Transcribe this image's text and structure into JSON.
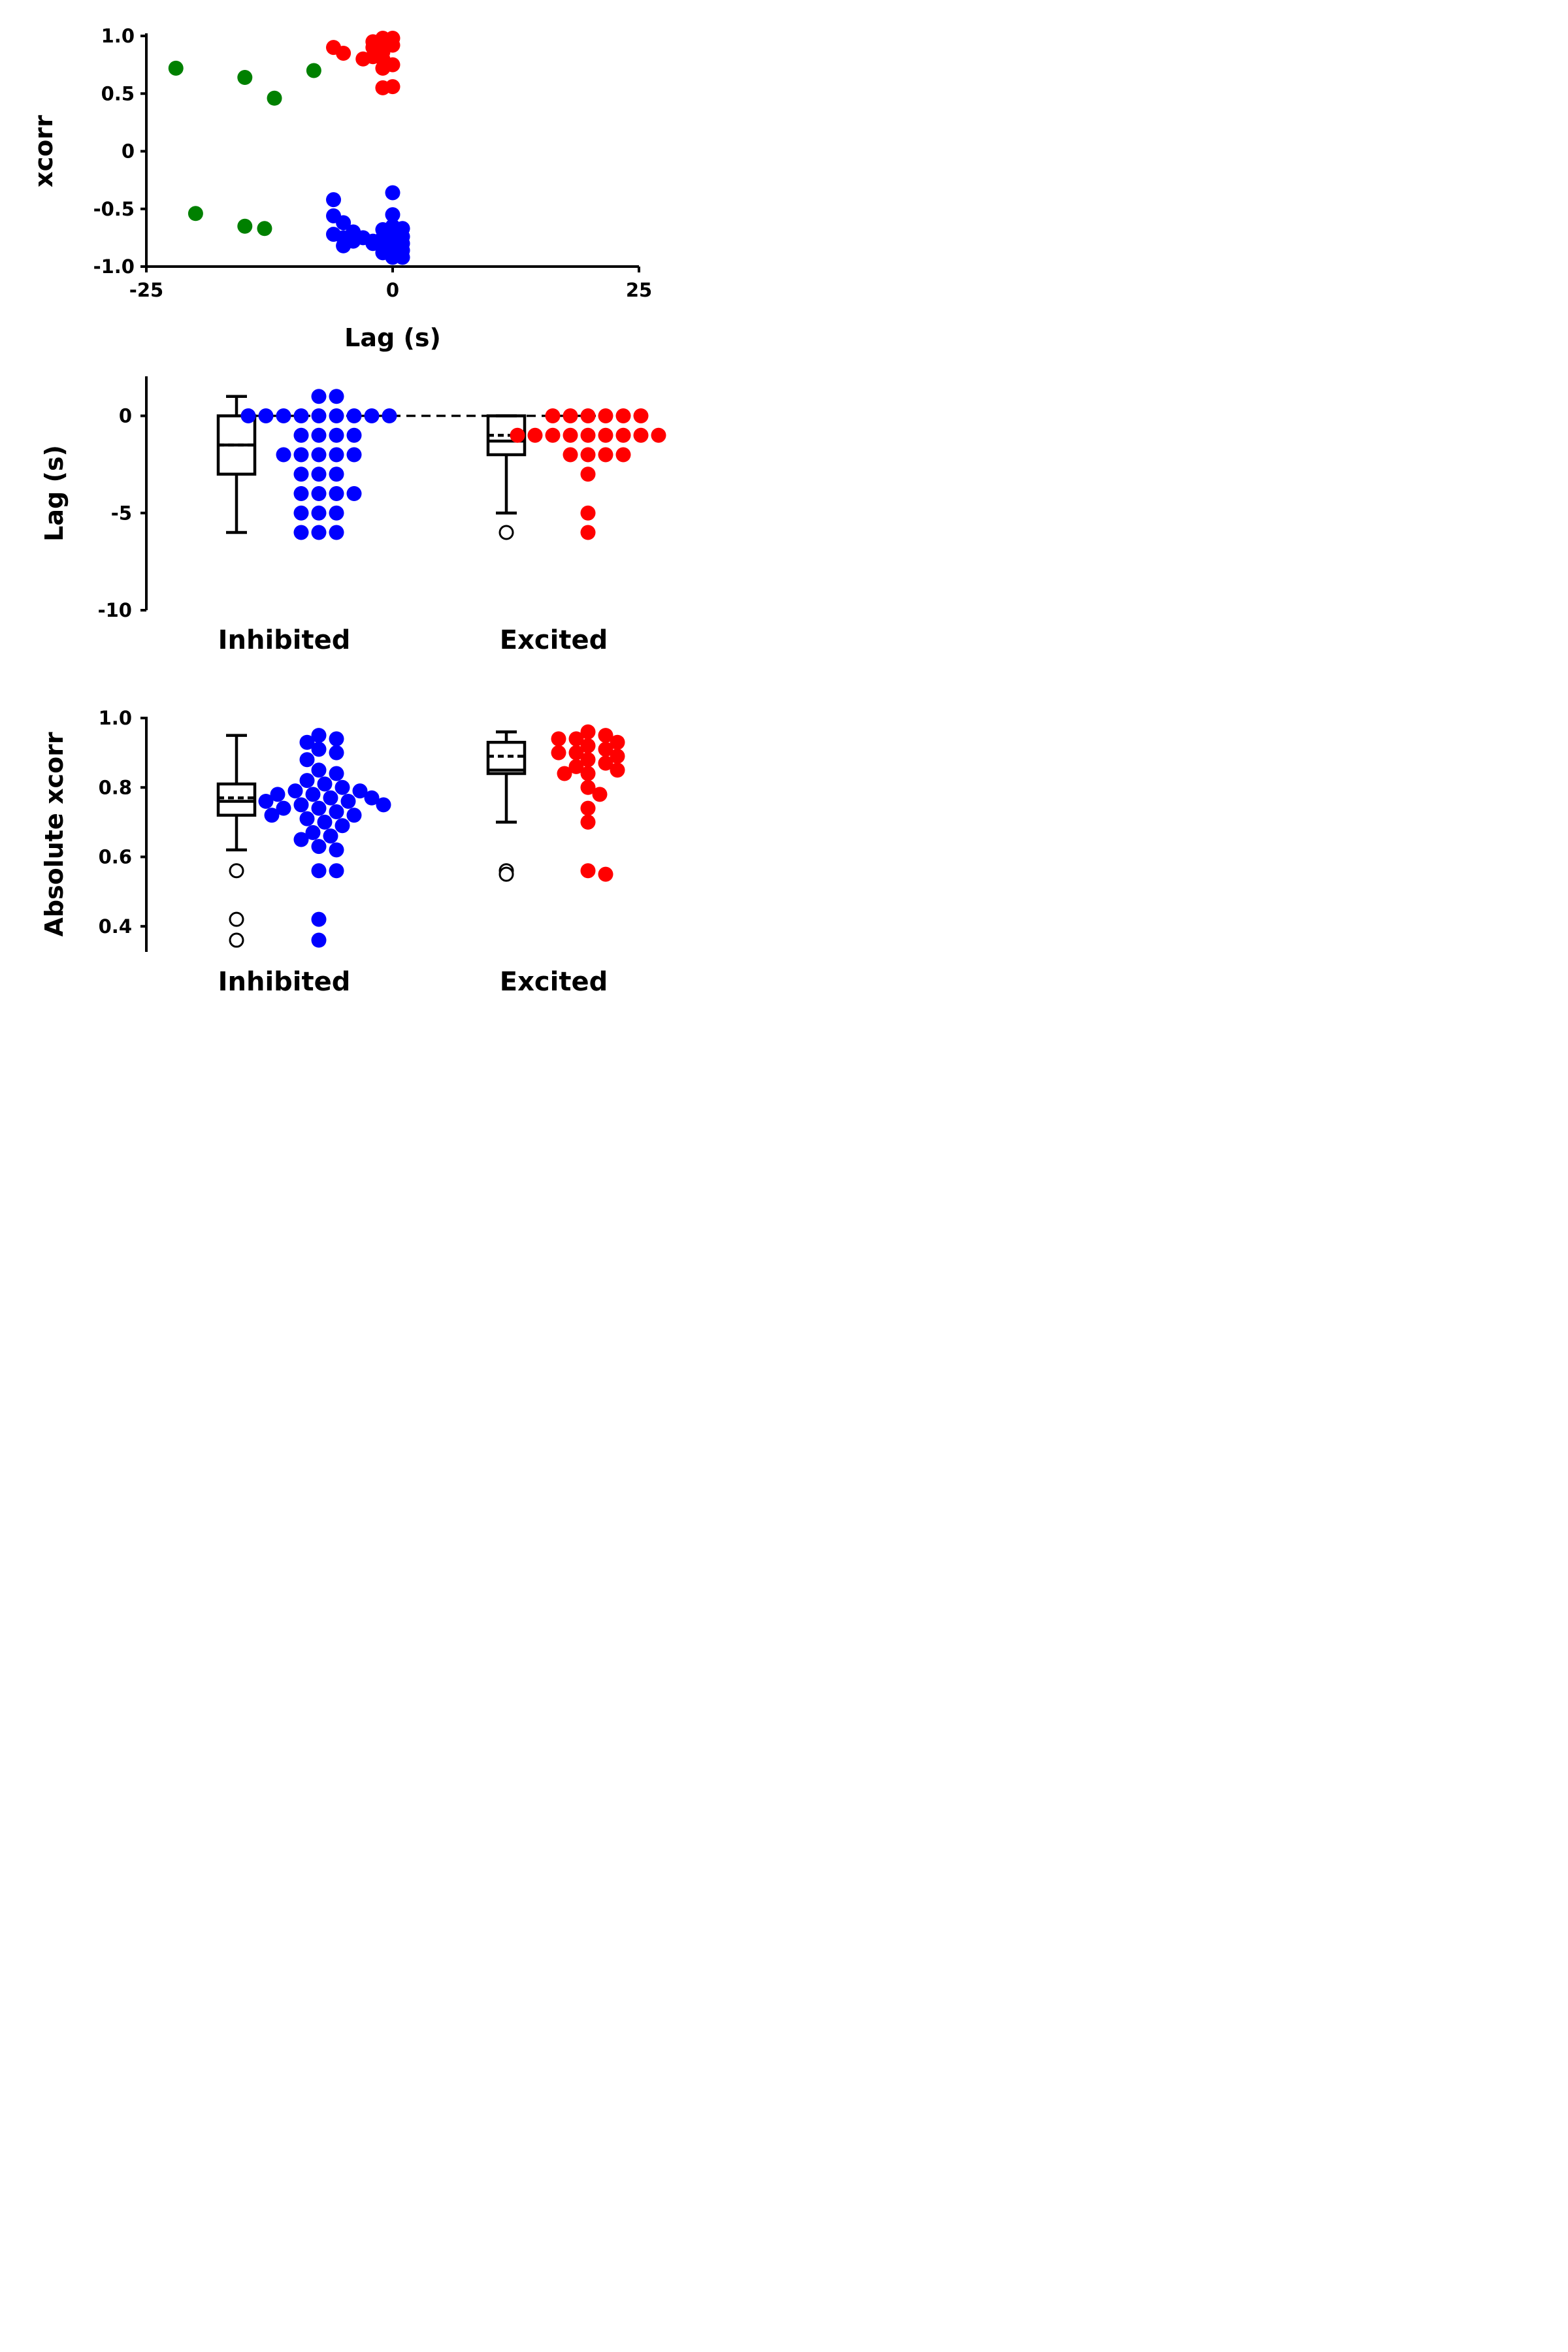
{
  "chart_data": [
    {
      "type": "scatter",
      "xlabel": "Lag (s)",
      "ylabel": "xcorr",
      "xlim": [
        -25,
        25
      ],
      "ylim": [
        -1.0,
        1.0
      ],
      "x_ticks": [
        -25,
        0,
        25
      ],
      "x_tick_labels": [
        "-25",
        "0",
        "25"
      ],
      "y_ticks": [
        1.0,
        0.5,
        0,
        -0.5,
        -1.0
      ],
      "y_tick_labels": [
        "1.0",
        "0.5",
        "0",
        "-0.5",
        "-1.0"
      ],
      "series": [
        {
          "color": "#008000",
          "points": [
            [
              -22,
              0.72
            ],
            [
              -15,
              0.64
            ],
            [
              -12,
              0.46
            ],
            [
              -8,
              0.7
            ],
            [
              -20,
              -0.54
            ],
            [
              -15,
              -0.65
            ],
            [
              -13,
              -0.67
            ]
          ]
        },
        {
          "color": "#ff0000",
          "points": [
            [
              -6,
              0.9
            ],
            [
              -5,
              0.85
            ],
            [
              -3,
              0.8
            ],
            [
              -2,
              0.82
            ],
            [
              -2,
              0.9
            ],
            [
              -2,
              0.95
            ],
            [
              -1,
              0.98
            ],
            [
              -1,
              0.93
            ],
            [
              -1,
              0.86
            ],
            [
              -1,
              0.8
            ],
            [
              -1,
              0.72
            ],
            [
              -1,
              0.55
            ],
            [
              0,
              0.98
            ],
            [
              0,
              0.92
            ],
            [
              0,
              0.75
            ],
            [
              0,
              0.56
            ],
            [
              -1.5,
              0.88
            ],
            [
              -0.5,
              0.96
            ]
          ]
        },
        {
          "color": "#0000ff",
          "points": [
            [
              -6,
              -0.42
            ],
            [
              -6,
              -0.56
            ],
            [
              -6,
              -0.72
            ],
            [
              -5,
              -0.62
            ],
            [
              -5,
              -0.75
            ],
            [
              -5,
              -0.82
            ],
            [
              -4,
              -0.7
            ],
            [
              -4,
              -0.78
            ],
            [
              -3,
              -0.75
            ],
            [
              -2,
              -0.78
            ],
            [
              -2,
              -0.8
            ],
            [
              -1,
              -0.68
            ],
            [
              -1,
              -0.75
            ],
            [
              -1,
              -0.82
            ],
            [
              -1,
              -0.88
            ],
            [
              0,
              -0.36
            ],
            [
              0,
              -0.55
            ],
            [
              0,
              -0.65
            ],
            [
              0,
              -0.72
            ],
            [
              0,
              -0.8
            ],
            [
              0,
              -0.86
            ],
            [
              0,
              -0.92
            ],
            [
              1,
              -0.67
            ],
            [
              1,
              -0.74
            ],
            [
              1,
              -0.8
            ],
            [
              1,
              -0.86
            ],
            [
              1,
              -0.92
            ]
          ]
        }
      ]
    },
    {
      "type": "box",
      "ylabel": "Lag (s)",
      "ylim": [
        -10,
        2
      ],
      "y_ticks": [
        0,
        -5,
        -10
      ],
      "y_tick_labels": [
        "0",
        "-5",
        "-10"
      ],
      "reference_line": 0,
      "groups": [
        {
          "name": "Inhibited",
          "color": "#0000ff",
          "box": {
            "q1": -3,
            "median": -1.5,
            "mean": -1.5,
            "q3": 0,
            "whisker_low": -6,
            "whisker_high": 1
          },
          "outliers": [],
          "points": [
            1,
            1,
            0,
            0,
            0,
            0,
            0,
            0,
            0,
            0,
            0,
            -1,
            -1,
            -1,
            -1,
            -2,
            -2,
            -2,
            -2,
            -2,
            -3,
            -3,
            -3,
            -4,
            -4,
            -4,
            -4,
            -5,
            -5,
            -5,
            -6,
            -6,
            -6
          ]
        },
        {
          "name": "Excited",
          "color": "#ff0000",
          "box": {
            "q1": -2,
            "median": -1.3,
            "mean": -1,
            "q3": 0,
            "whisker_low": -5,
            "whisker_high": 0
          },
          "outliers": [
            -6
          ],
          "points": [
            0,
            0,
            0,
            0,
            0,
            0,
            -1,
            -1,
            -1,
            -1,
            -1,
            -1,
            -1,
            -1,
            -1,
            -2,
            -2,
            -2,
            -2,
            -3,
            -5,
            -6
          ]
        }
      ]
    },
    {
      "type": "box",
      "ylabel": "Absolute xcorr",
      "ylim": [
        0.33,
        1.0
      ],
      "y_ticks": [
        1.0,
        0.8,
        0.6,
        0.4
      ],
      "y_tick_labels": [
        "1.0",
        "0.8",
        "0.6",
        "0.4"
      ],
      "groups": [
        {
          "name": "Inhibited",
          "color": "#0000ff",
          "box": {
            "q1": 0.72,
            "median": 0.76,
            "mean": 0.77,
            "q3": 0.81,
            "whisker_low": 0.62,
            "whisker_high": 0.95
          },
          "outliers": [
            0.56,
            0.42,
            0.36
          ],
          "points": [
            0.95,
            0.94,
            0.93,
            0.91,
            0.9,
            0.88,
            0.85,
            0.84,
            0.82,
            0.81,
            0.8,
            0.79,
            0.79,
            0.78,
            0.78,
            0.77,
            0.77,
            0.76,
            0.76,
            0.75,
            0.75,
            0.74,
            0.74,
            0.73,
            0.72,
            0.72,
            0.71,
            0.7,
            0.69,
            0.67,
            0.66,
            0.65,
            0.63,
            0.62,
            0.56,
            0.56,
            0.42,
            0.36
          ]
        },
        {
          "name": "Excited",
          "color": "#ff0000",
          "box": {
            "q1": 0.84,
            "median": 0.85,
            "mean": 0.89,
            "q3": 0.93,
            "whisker_low": 0.7,
            "whisker_high": 0.96
          },
          "outliers": [
            0.56,
            0.55
          ],
          "points": [
            0.96,
            0.95,
            0.94,
            0.94,
            0.93,
            0.92,
            0.91,
            0.9,
            0.9,
            0.89,
            0.88,
            0.87,
            0.86,
            0.85,
            0.84,
            0.84,
            0.8,
            0.78,
            0.74,
            0.7,
            0.56,
            0.55
          ]
        }
      ]
    }
  ]
}
